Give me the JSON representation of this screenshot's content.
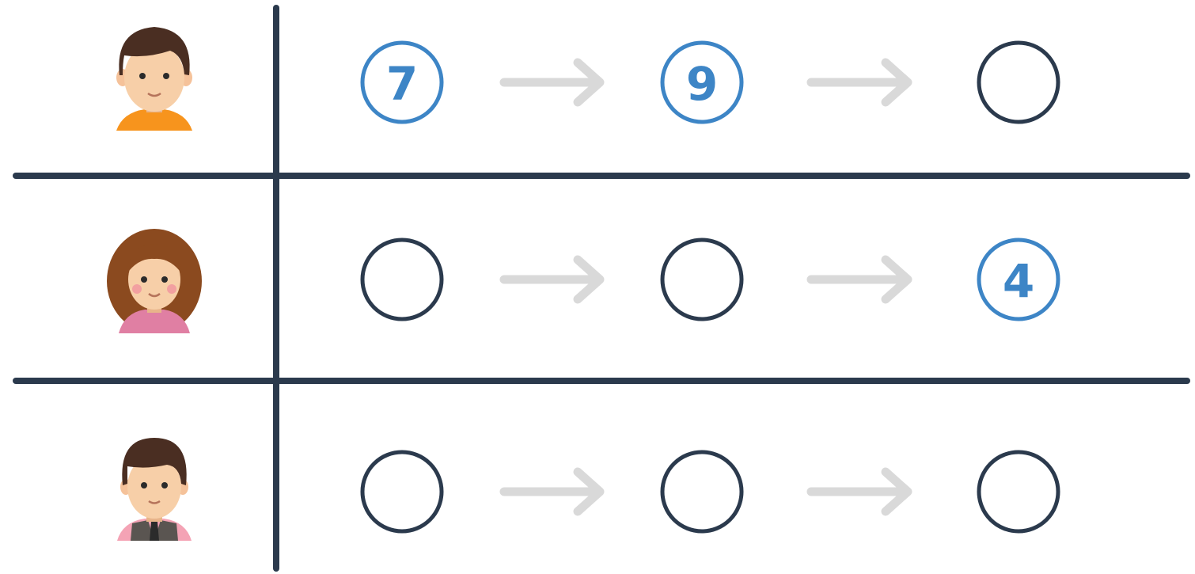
{
  "rows": [
    {
      "cells": [
        7,
        9,
        null
      ]
    },
    {
      "cells": [
        null,
        null,
        4
      ]
    },
    {
      "cells": [
        null,
        null,
        null
      ]
    }
  ]
}
